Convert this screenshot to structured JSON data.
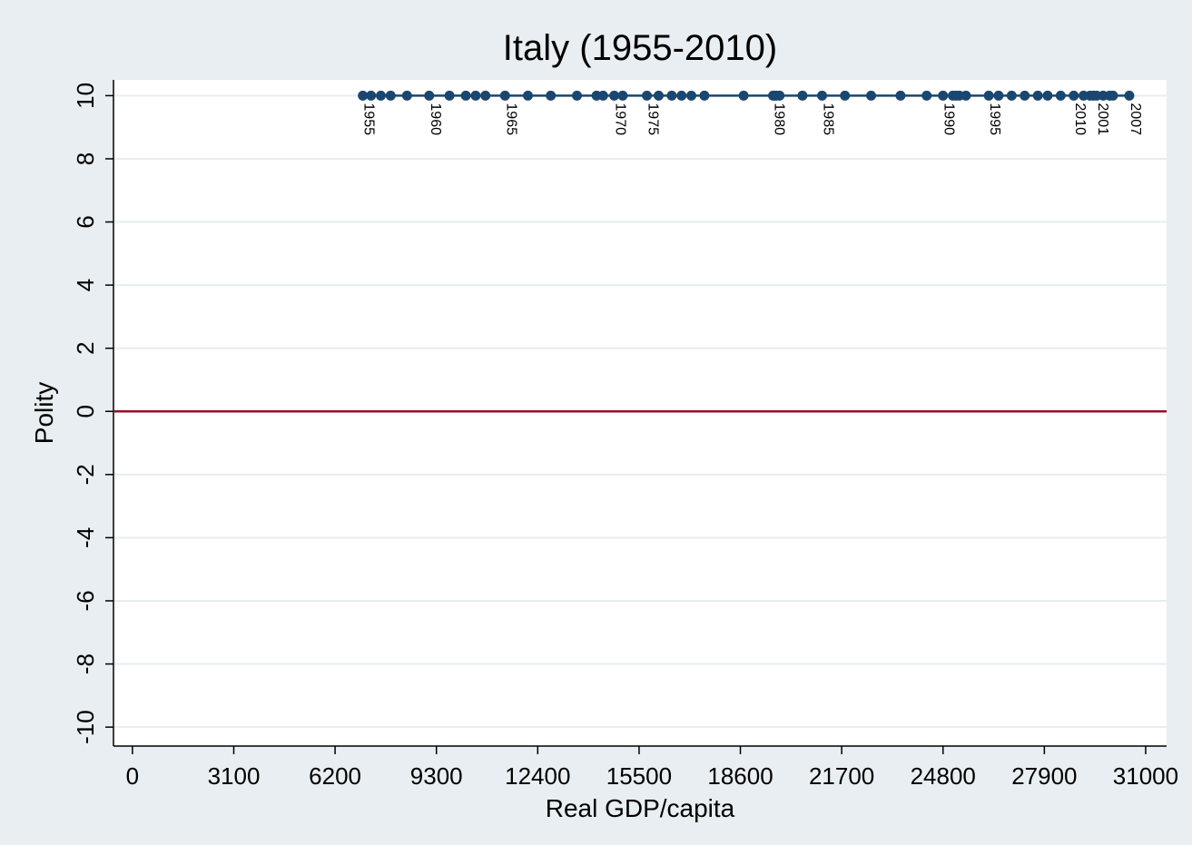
{
  "chart_data": {
    "type": "scatter",
    "title": "Italy (1955-2010)",
    "x_label": "Real GDP/capita",
    "y_label": "Polity",
    "x": [
      7050,
      7300,
      7600,
      7900,
      8400,
      9080,
      9700,
      10200,
      10500,
      10800,
      11400,
      12100,
      12800,
      13600,
      14200,
      14740,
      14400,
      15000,
      16100,
      16500,
      15740,
      16800,
      17100,
      17500,
      18700,
      19600,
      19700,
      19650,
      19800,
      20500,
      21100,
      21800,
      22600,
      23500,
      24300,
      24800,
      25100,
      25300,
      25200,
      25500,
      26200,
      26500,
      26900,
      27300,
      27700,
      28000,
      29500,
      29300,
      29100,
      29400,
      29700,
      30000,
      30500,
      29900,
      28400,
      28800
    ],
    "series": [
      {
        "name": "Polity",
        "color": "#1a476f",
        "values": [
          10,
          10,
          10,
          10,
          10,
          10,
          10,
          10,
          10,
          10,
          10,
          10,
          10,
          10,
          10,
          10,
          10,
          10,
          10,
          10,
          10,
          10,
          10,
          10,
          10,
          10,
          10,
          10,
          10,
          10,
          10,
          10,
          10,
          10,
          10,
          10,
          10,
          10,
          10,
          10,
          10,
          10,
          10,
          10,
          10,
          10,
          10,
          10,
          10,
          10,
          10,
          10,
          10,
          10,
          10,
          10
        ]
      }
    ],
    "point_labels": [
      "1955",
      null,
      null,
      null,
      null,
      "1960",
      null,
      null,
      null,
      null,
      "1965",
      null,
      null,
      null,
      null,
      "1970",
      null,
      null,
      null,
      null,
      "1975",
      null,
      null,
      null,
      null,
      "1980",
      null,
      null,
      null,
      null,
      "1985",
      null,
      null,
      null,
      null,
      "1990",
      null,
      null,
      null,
      null,
      "1995",
      null,
      null,
      null,
      null,
      null,
      "2001",
      null,
      null,
      null,
      null,
      null,
      "2007",
      null,
      null,
      "2010"
    ],
    "reference_line": {
      "y": 0,
      "color": "#990c2b"
    },
    "xlim": [
      -580,
      31640
    ],
    "ylim": [
      -10.6,
      10.5
    ],
    "xticks": [
      0,
      3100,
      6200,
      9300,
      12400,
      15500,
      18600,
      21700,
      24800,
      27900,
      31000
    ],
    "yticks": [
      -10,
      -8,
      -6,
      -4,
      -2,
      0,
      2,
      4,
      6,
      8,
      10
    ],
    "grid": true
  }
}
